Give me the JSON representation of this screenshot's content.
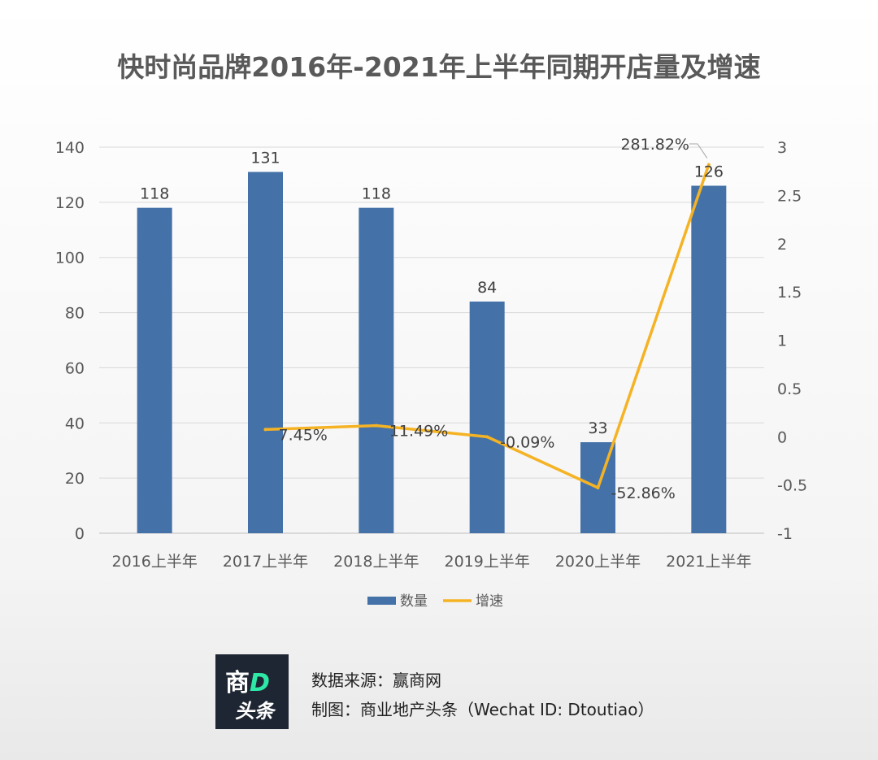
{
  "chart_data": {
    "type": "bar+line",
    "title": "快时尚品牌2016年-2021年上半年同期开店量及增速",
    "categories": [
      "2016上半年",
      "2017上半年",
      "2018上半年",
      "2019上半年",
      "2020上半年",
      "2021上半年"
    ],
    "series": [
      {
        "name": "数量",
        "type": "bar",
        "axis": "left",
        "color": "#4472a8",
        "values": [
          118,
          131,
          118,
          84,
          33,
          126
        ],
        "labels": [
          "118",
          "131",
          "118",
          "84",
          "33",
          "126"
        ]
      },
      {
        "name": "增速",
        "type": "line",
        "axis": "right",
        "color": "#f5b324",
        "values": [
          null,
          0.0745,
          0.1149,
          -0.0009,
          -0.5286,
          2.8182
        ],
        "labels": [
          "",
          "7.45%",
          "11.49%",
          "-0.09%",
          "-52.86%",
          "281.82%"
        ]
      }
    ],
    "y_left": {
      "min": 0,
      "max": 140,
      "ticks": [
        "0",
        "20",
        "40",
        "60",
        "80",
        "100",
        "120",
        "140"
      ]
    },
    "y_right": {
      "min": -1,
      "max": 3,
      "ticks": [
        "-1",
        "-0.5",
        "0",
        "0.5",
        "1",
        "1.5",
        "2",
        "2.5",
        "3"
      ]
    },
    "grid": true,
    "legend_position": "bottom"
  },
  "footer": {
    "source": "数据来源：赢商网",
    "made_by": "制图：商业地产头条（Wechat ID: Dtoutiao）",
    "logo_top": "商",
    "logo_top_accent": "D",
    "logo_bottom": "头条"
  }
}
